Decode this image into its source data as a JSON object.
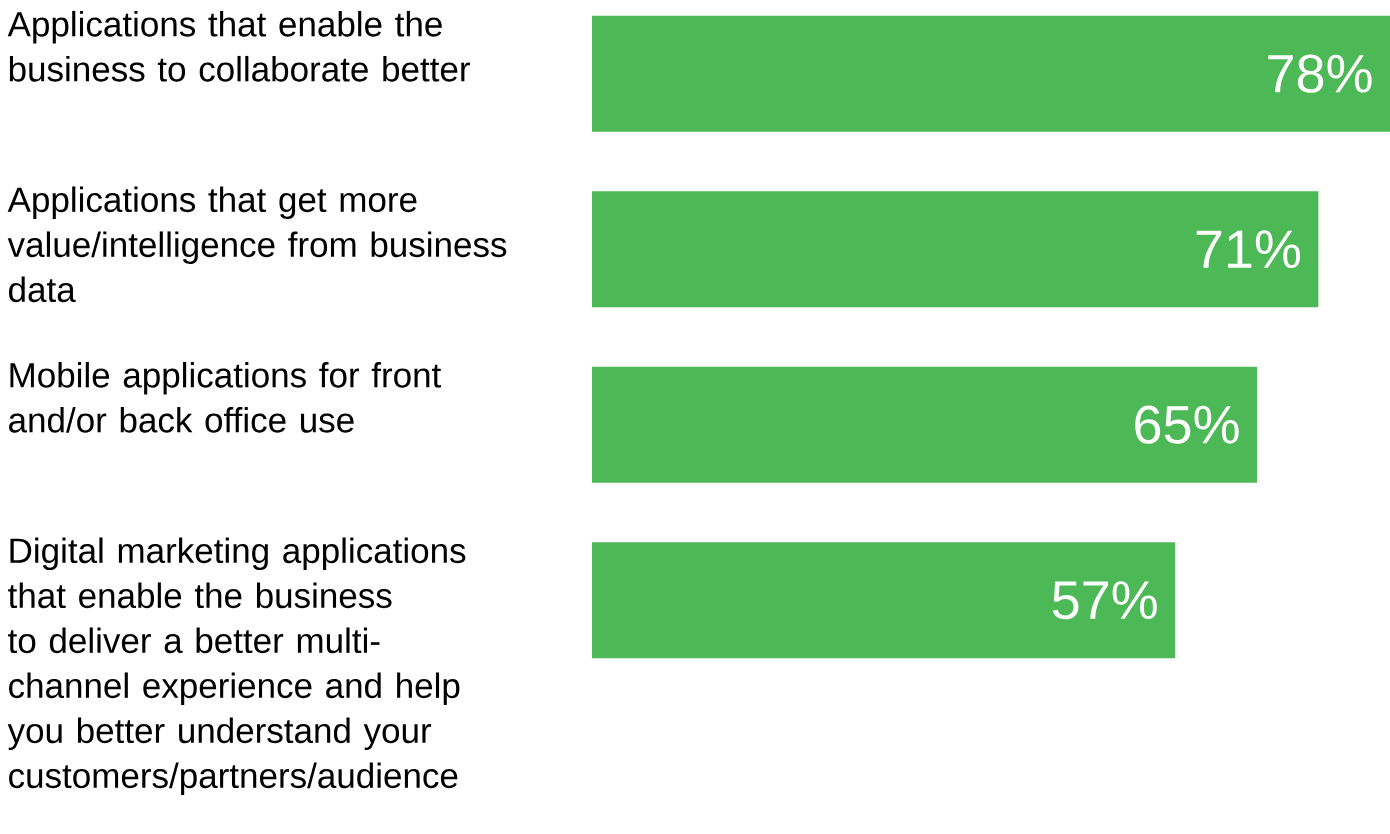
{
  "chart_data": {
    "type": "bar",
    "orientation": "horizontal",
    "categories": [
      "Applications that enable the business to collaborate better",
      "Applications that get more value/intelligence from business data",
      "Mobile applications for front and/or back office use",
      "Digital marketing applications that enable the business to deliver a better multi-channel experience and help you better understand your customers/partners/audience"
    ],
    "values": [
      78,
      71,
      65,
      57
    ],
    "value_labels": [
      "78%",
      "71%",
      "65%",
      "57%"
    ],
    "color": "#4db856"
  }
}
